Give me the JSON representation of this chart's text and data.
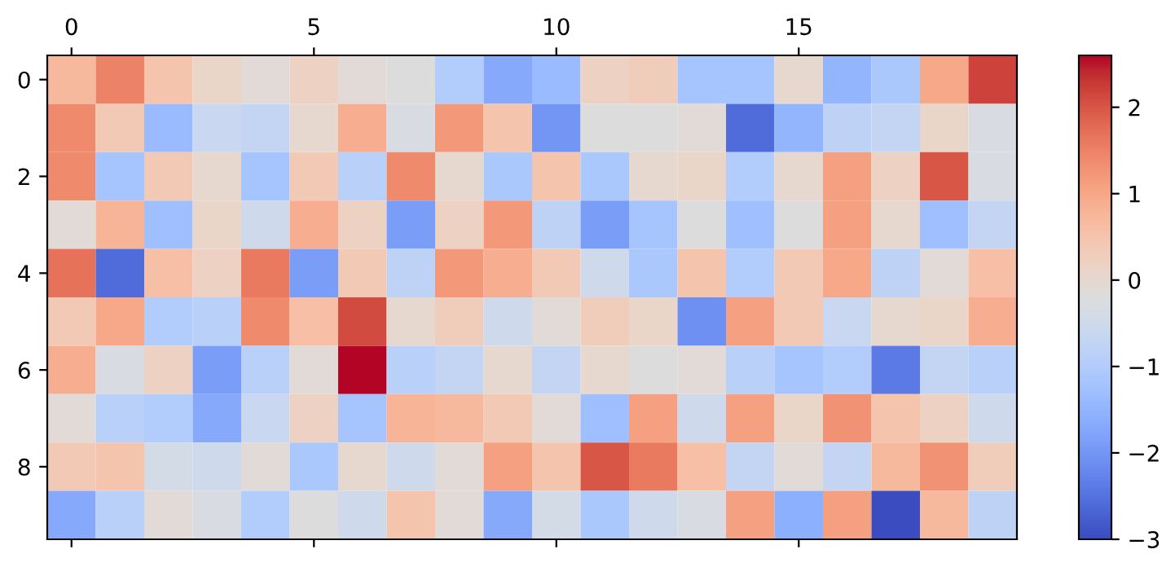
{
  "chart_data": {
    "type": "heatmap",
    "cells": [
      [
        0.7,
        1.5,
        0.5,
        0.1,
        -0.1,
        0.2,
        -0.1,
        -0.2,
        -1.0,
        -1.7,
        -1.4,
        0.2,
        0.3,
        -1.2,
        -1.2,
        0.0,
        -1.5,
        -1.1,
        1.0,
        2.2
      ],
      [
        1.4,
        0.4,
        -1.4,
        -0.6,
        -0.7,
        0.0,
        0.9,
        -0.3,
        1.2,
        0.5,
        -2.0,
        -0.2,
        -0.2,
        -0.1,
        -2.6,
        -1.5,
        -0.8,
        -0.7,
        0.1,
        -0.3
      ],
      [
        1.4,
        -1.2,
        0.4,
        0.0,
        -1.2,
        0.4,
        -0.9,
        1.4,
        0.0,
        -1.1,
        0.5,
        -1.1,
        0.0,
        0.1,
        -1.0,
        0.0,
        1.1,
        0.2,
        2.0,
        -0.3
      ],
      [
        -0.1,
        0.8,
        -1.3,
        0.1,
        -0.5,
        0.9,
        0.2,
        -1.9,
        0.2,
        1.2,
        -0.8,
        -1.9,
        -1.2,
        -0.2,
        -1.3,
        -0.2,
        1.1,
        0.0,
        -1.3,
        -0.7
      ],
      [
        1.7,
        -2.6,
        0.6,
        0.2,
        1.6,
        -1.9,
        0.4,
        -0.8,
        1.2,
        0.9,
        0.4,
        -0.5,
        -1.1,
        0.5,
        -1.0,
        0.4,
        1.0,
        -0.8,
        -0.1,
        0.6
      ],
      [
        0.4,
        1.0,
        -1.0,
        -0.9,
        1.4,
        0.6,
        2.1,
        0.0,
        0.3,
        -0.5,
        -0.1,
        0.3,
        0.1,
        -2.1,
        1.1,
        0.4,
        -0.6,
        0.0,
        0.1,
        0.9
      ],
      [
        0.9,
        -0.3,
        0.2,
        -1.9,
        -0.9,
        -0.1,
        2.6,
        -0.9,
        -0.7,
        0.0,
        -0.7,
        0.0,
        -0.2,
        -0.1,
        -0.9,
        -1.2,
        -1.0,
        -2.4,
        -0.7,
        -0.9
      ],
      [
        -0.1,
        -0.9,
        -1.0,
        -1.7,
        -0.6,
        0.2,
        -1.2,
        0.8,
        0.7,
        0.4,
        -0.1,
        -1.3,
        1.1,
        -0.5,
        1.1,
        0.1,
        1.3,
        0.5,
        0.2,
        -0.5
      ],
      [
        0.4,
        0.5,
        -0.4,
        -0.5,
        -0.1,
        -1.1,
        0.0,
        -0.5,
        -0.1,
        1.1,
        0.5,
        2.0,
        1.6,
        0.6,
        -0.7,
        -0.1,
        -0.7,
        0.7,
        1.3,
        0.3
      ],
      [
        -1.7,
        -0.9,
        -0.1,
        -0.3,
        -1.0,
        -0.2,
        -0.5,
        0.5,
        -0.1,
        -1.7,
        -0.4,
        -1.1,
        -0.5,
        -0.3,
        1.1,
        -1.6,
        1.1,
        -3.0,
        0.7,
        -0.8
      ]
    ],
    "categories": [
      "0",
      null,
      null,
      null,
      null,
      "5",
      null,
      null,
      null,
      null,
      "10",
      null,
      null,
      null,
      null,
      "15",
      null,
      null,
      null,
      null
    ],
    "y_categories": [
      "0",
      null,
      "2",
      null,
      "4",
      null,
      "6",
      null,
      "8",
      null
    ],
    "clim": [
      -3.0,
      2.6
    ],
    "cticks": [
      -3,
      -2,
      -1,
      0,
      1,
      2
    ]
  }
}
